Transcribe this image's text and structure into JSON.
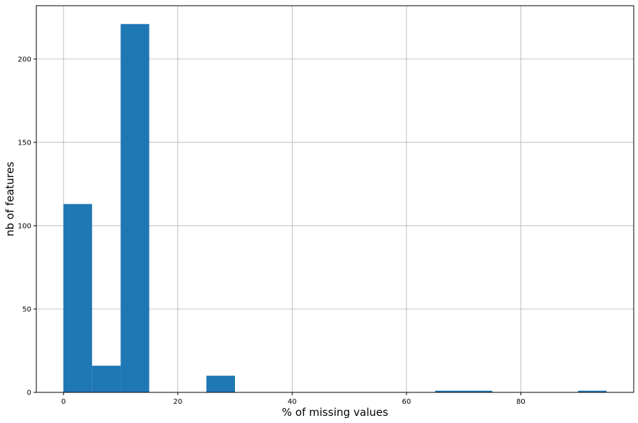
{
  "chart_data": {
    "type": "bar",
    "title": "",
    "xlabel": "% of missing values",
    "ylabel": "nb of features",
    "xlim": [
      -4.75,
      99.75
    ],
    "ylim": [
      0,
      232
    ],
    "grid": true,
    "bar_color": "#1f77b4",
    "grid_color": "#b0b0b0",
    "bins": [
      {
        "start": 0,
        "end": 5,
        "value": 113
      },
      {
        "start": 5,
        "end": 10,
        "value": 16
      },
      {
        "start": 10,
        "end": 15,
        "value": 221
      },
      {
        "start": 15,
        "end": 20,
        "value": 0
      },
      {
        "start": 20,
        "end": 25,
        "value": 0
      },
      {
        "start": 25,
        "end": 30,
        "value": 10
      },
      {
        "start": 30,
        "end": 35,
        "value": 0
      },
      {
        "start": 35,
        "end": 40,
        "value": 0
      },
      {
        "start": 40,
        "end": 45,
        "value": 0
      },
      {
        "start": 45,
        "end": 50,
        "value": 0
      },
      {
        "start": 50,
        "end": 55,
        "value": 0
      },
      {
        "start": 55,
        "end": 60,
        "value": 0
      },
      {
        "start": 60,
        "end": 65,
        "value": 0
      },
      {
        "start": 65,
        "end": 70,
        "value": 1
      },
      {
        "start": 70,
        "end": 75,
        "value": 1
      },
      {
        "start": 75,
        "end": 80,
        "value": 0
      },
      {
        "start": 80,
        "end": 85,
        "value": 0
      },
      {
        "start": 85,
        "end": 90,
        "value": 0
      },
      {
        "start": 90,
        "end": 95,
        "value": 1
      }
    ],
    "xticks": [
      0,
      20,
      40,
      60,
      80
    ],
    "yticks": [
      0,
      50,
      100,
      150,
      200
    ]
  }
}
